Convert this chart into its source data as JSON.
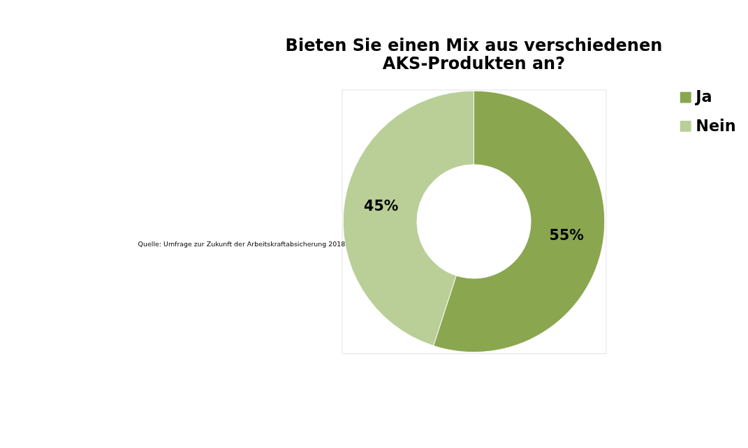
{
  "chart_data": {
    "type": "donut",
    "title": [
      "Bieten Sie einen Mix aus verschiedenen",
      "AKS-Produkten  an?"
    ],
    "categories": [
      "Ja",
      "Nein"
    ],
    "values": [
      55,
      45
    ],
    "colors": [
      "#8aa64f",
      "#b9cf97"
    ],
    "value_labels": [
      "55%",
      "45%"
    ],
    "legend": "right",
    "annotations": [
      "Quelle: Umfrage zur Zukunft der Arbeitskraftabsicherung 2018"
    ]
  }
}
